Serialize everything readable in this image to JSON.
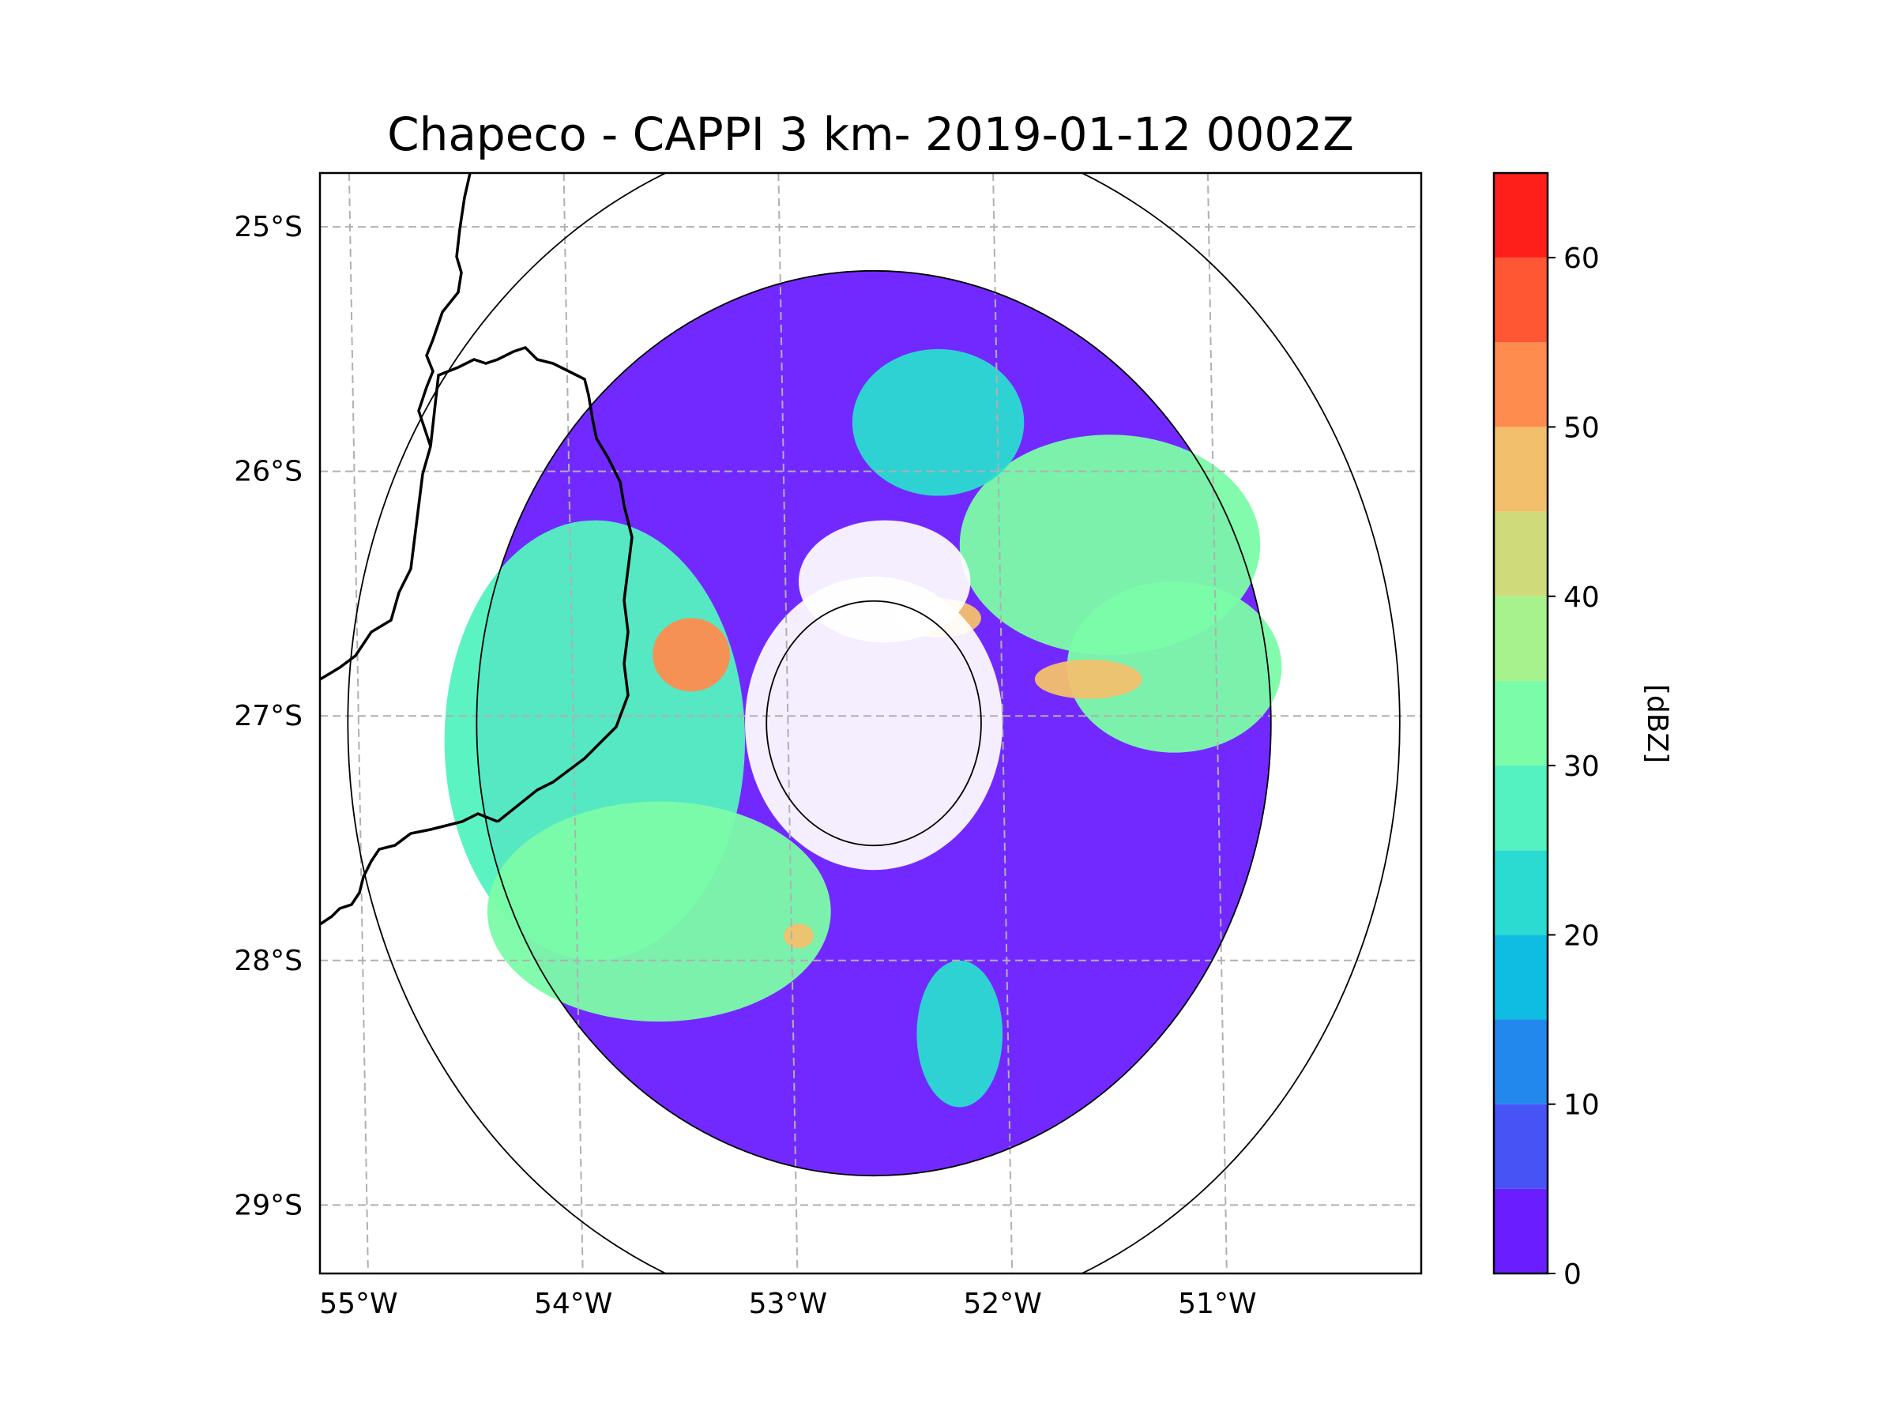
{
  "chart_data": {
    "type": "heatmap",
    "title": "Chapeco - CAPPI 3 km- 2019-01-12 0002Z",
    "map": {
      "lon_range": [
        -55.18,
        -50.05
      ],
      "lat_range": [
        -29.28,
        -24.78
      ],
      "x_ticks": [
        {
          "value": -55,
          "label": "55°W"
        },
        {
          "value": -54,
          "label": "54°W"
        },
        {
          "value": -53,
          "label": "53°W"
        },
        {
          "value": -52,
          "label": "52°W"
        },
        {
          "value": -51,
          "label": "51°W"
        }
      ],
      "y_ticks": [
        {
          "value": -25,
          "label": "25°S"
        },
        {
          "value": -26,
          "label": "26°S"
        },
        {
          "value": -27,
          "label": "27°S"
        },
        {
          "value": -28,
          "label": "28°S"
        },
        {
          "value": -29,
          "label": "29°S"
        }
      ],
      "grid": true,
      "radar_center": {
        "lon": -52.6,
        "lat": -27.03
      },
      "range_rings_deg": [
        0.5,
        1.85,
        2.45
      ],
      "regions": [
        {
          "name": "weak-echo-field",
          "lon": -52.6,
          "lat": -27.03,
          "rx": 1.85,
          "ry": 1.85,
          "dbz": 3
        },
        {
          "name": "west-shield",
          "lon": -53.9,
          "lat": -27.1,
          "rx": 0.7,
          "ry": 0.9,
          "dbz": 28
        },
        {
          "name": "southwest-band",
          "lon": -53.6,
          "lat": -27.8,
          "rx": 0.8,
          "ry": 0.45,
          "dbz": 30
        },
        {
          "name": "northeast-band",
          "lon": -51.5,
          "lat": -26.3,
          "rx": 0.7,
          "ry": 0.45,
          "dbz": 32
        },
        {
          "name": "east-band",
          "lon": -51.2,
          "lat": -26.8,
          "rx": 0.5,
          "ry": 0.35,
          "dbz": 30
        },
        {
          "name": "north-patch",
          "lon": -52.3,
          "lat": -25.8,
          "rx": 0.4,
          "ry": 0.3,
          "dbz": 20
        },
        {
          "name": "south-line",
          "lon": -52.2,
          "lat": -28.3,
          "rx": 0.2,
          "ry": 0.3,
          "dbz": 20
        },
        {
          "name": "west-core",
          "lon": -53.45,
          "lat": -26.75,
          "rx": 0.18,
          "ry": 0.15,
          "dbz": 50
        },
        {
          "name": "northeast-core-1",
          "lon": -52.3,
          "lat": -26.6,
          "rx": 0.2,
          "ry": 0.08,
          "dbz": 48
        },
        {
          "name": "northeast-core-2",
          "lon": -51.6,
          "lat": -26.85,
          "rx": 0.25,
          "ry": 0.08,
          "dbz": 46
        },
        {
          "name": "south-core",
          "lon": -52.95,
          "lat": -27.9,
          "rx": 0.07,
          "ry": 0.05,
          "dbz": 46
        },
        {
          "name": "clear-ring",
          "lon": -52.6,
          "lat": -27.03,
          "rx": 0.6,
          "ry": 0.6,
          "dbz": null
        },
        {
          "name": "clear-north-east-gap",
          "lon": -52.55,
          "lat": -26.45,
          "rx": 0.4,
          "ry": 0.25,
          "dbz": null
        }
      ]
    },
    "colorbar": {
      "label": "[dBZ]",
      "range": [
        0,
        65
      ],
      "ticks": [
        0,
        10,
        20,
        30,
        40,
        50,
        60
      ],
      "bins": [
        {
          "from": 0,
          "to": 5,
          "color": "#6a1eff"
        },
        {
          "from": 5,
          "to": 10,
          "color": "#4753f5"
        },
        {
          "from": 10,
          "to": 15,
          "color": "#2388ee"
        },
        {
          "from": 15,
          "to": 20,
          "color": "#0fbde3"
        },
        {
          "from": 20,
          "to": 25,
          "color": "#2bdbd1"
        },
        {
          "from": 25,
          "to": 30,
          "color": "#53f2c0"
        },
        {
          "from": 30,
          "to": 35,
          "color": "#7bfca8"
        },
        {
          "from": 35,
          "to": 40,
          "color": "#a7f28c"
        },
        {
          "from": 40,
          "to": 45,
          "color": "#cfdb7a"
        },
        {
          "from": 45,
          "to": 50,
          "color": "#f2c06d"
        },
        {
          "from": 50,
          "to": 55,
          "color": "#ff8c4f"
        },
        {
          "from": 55,
          "to": 60,
          "color": "#ff5733"
        },
        {
          "from": 60,
          "to": 65,
          "color": "#ff1f1a"
        }
      ]
    }
  }
}
